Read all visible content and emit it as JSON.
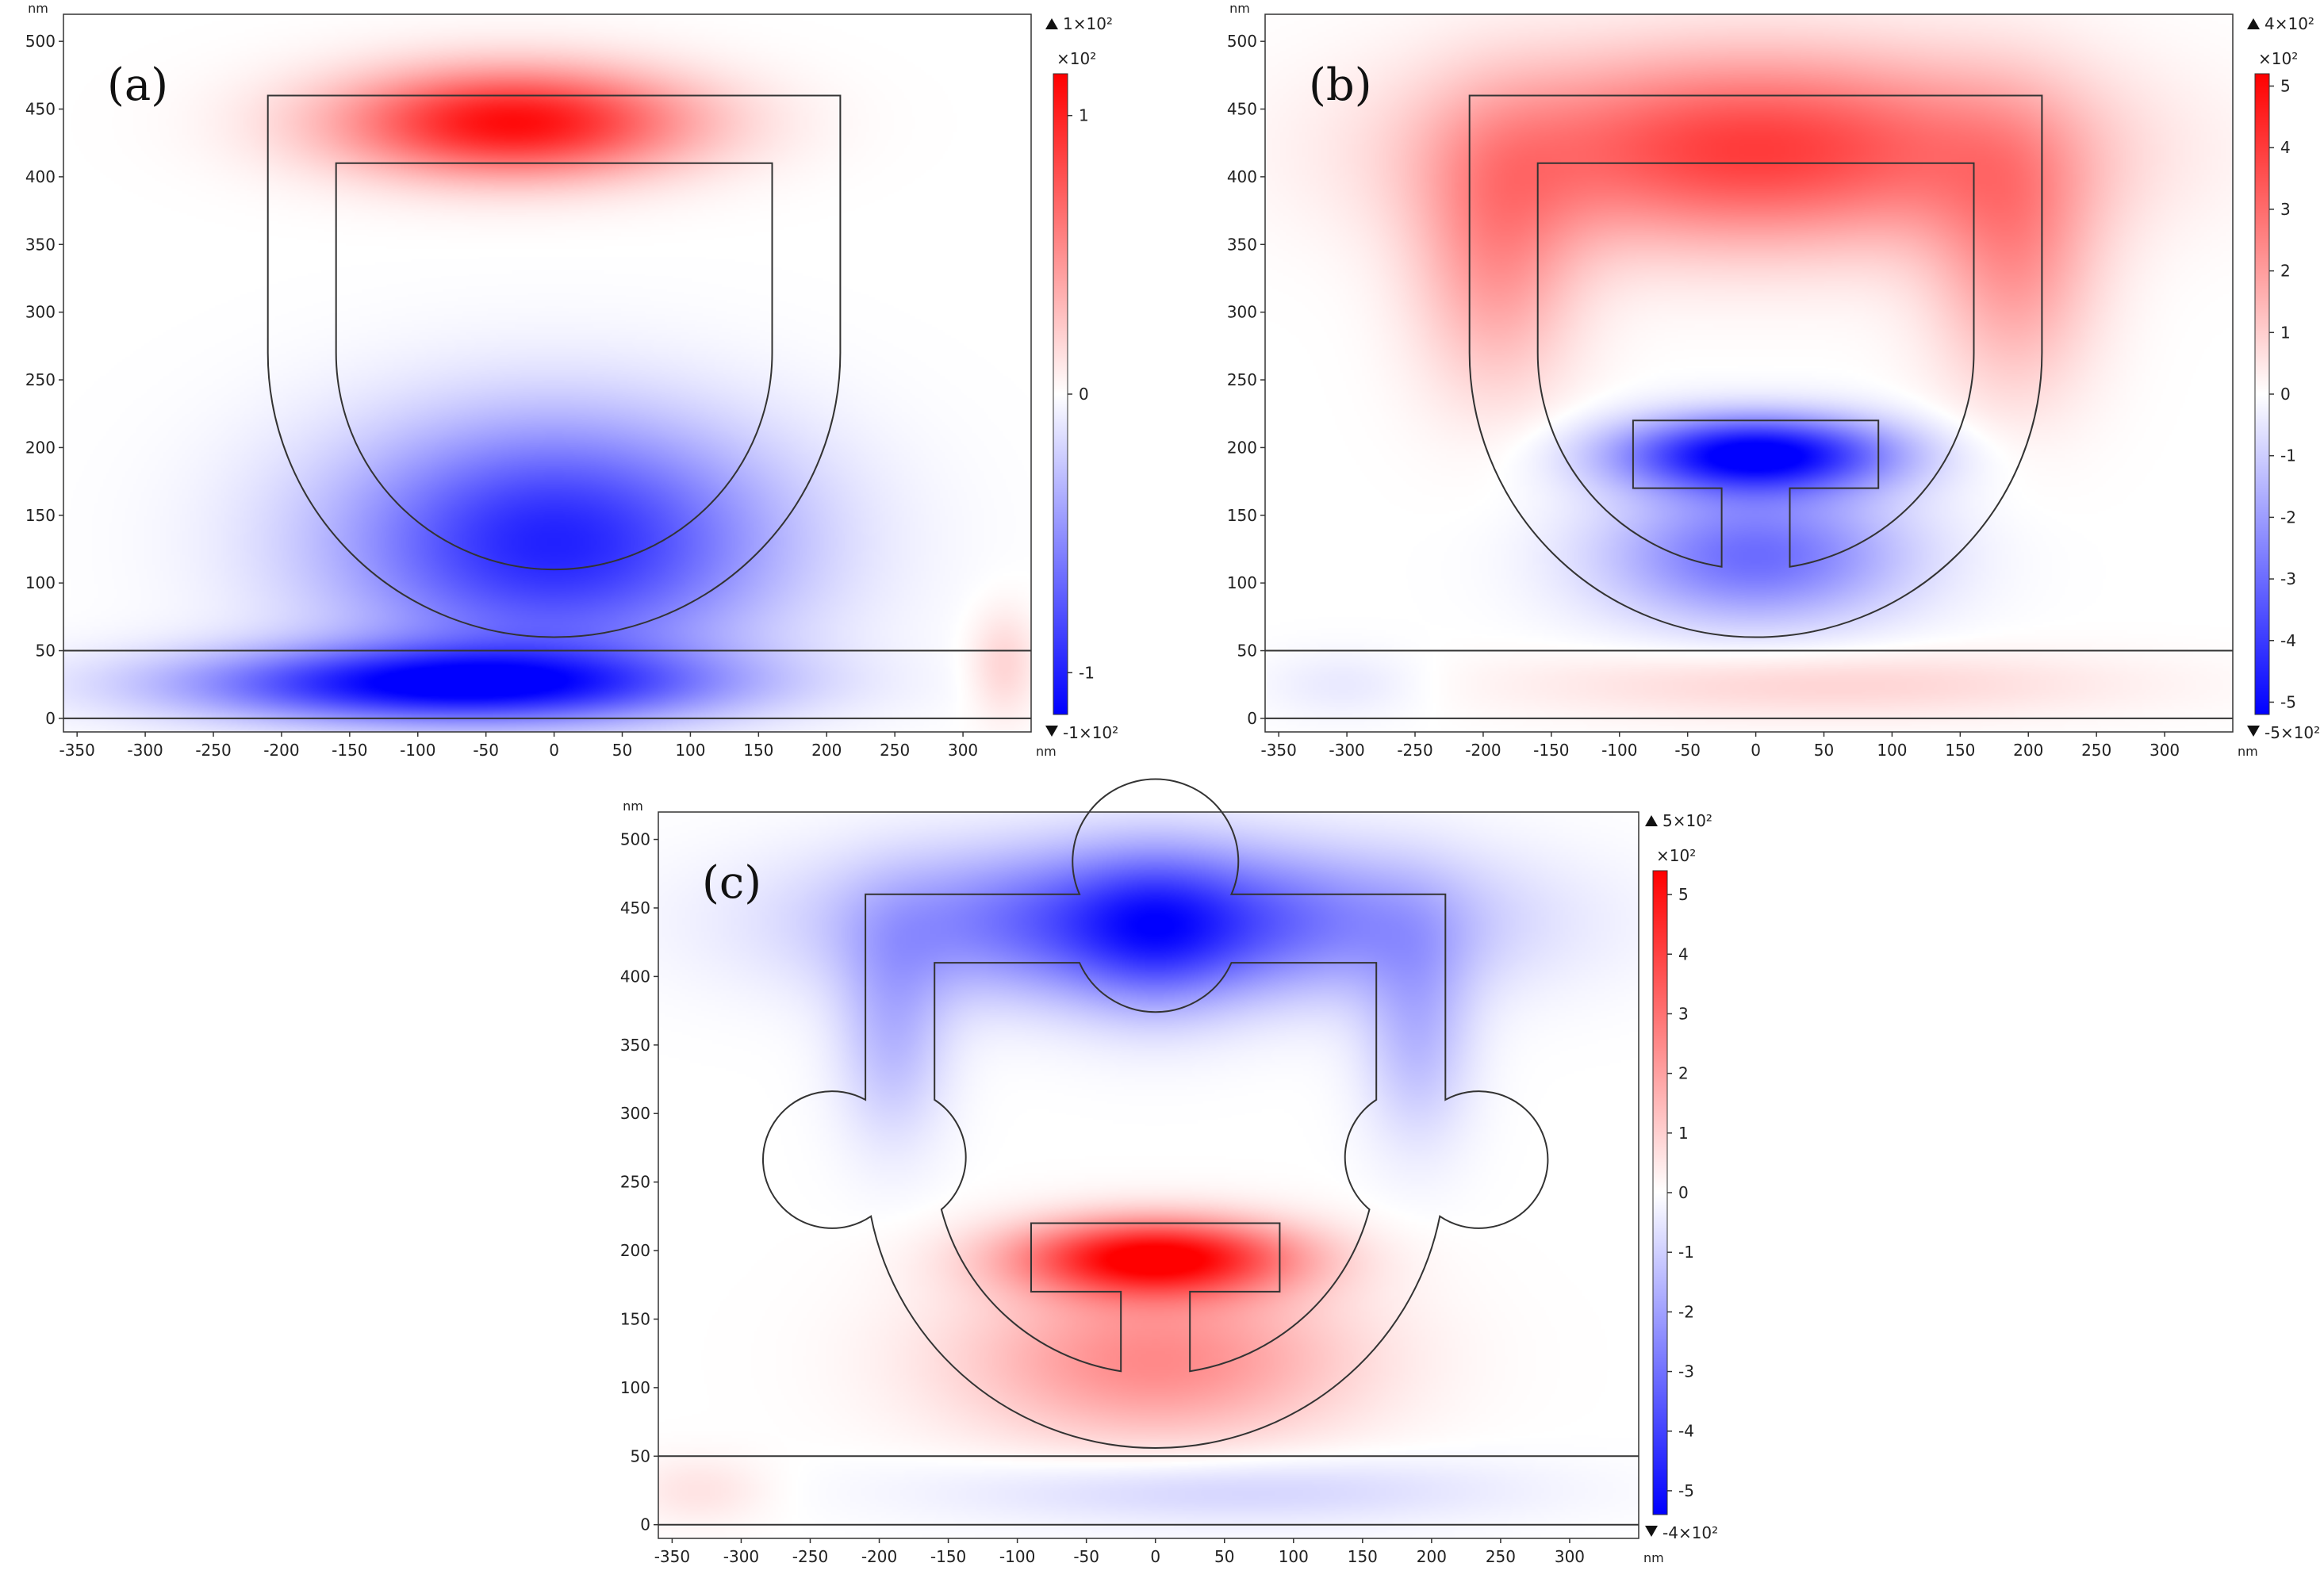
{
  "chart_data": [
    {
      "type": "heatmap",
      "label": "(a)",
      "x_unit": "nm",
      "y_unit": "nm",
      "xlim": [
        -360,
        350
      ],
      "ylim": [
        -10,
        520
      ],
      "x_ticks": [
        -350,
        -300,
        -250,
        -200,
        -150,
        -100,
        -50,
        0,
        50,
        100,
        150,
        200,
        250,
        300
      ],
      "y_ticks": [
        0,
        50,
        100,
        150,
        200,
        250,
        300,
        350,
        400,
        450,
        500
      ],
      "colorbar": {
        "max_label": "1×10²",
        "min_label": "-1×10²",
        "scale_label": "×10²",
        "ticks": [
          1,
          0,
          -1
        ],
        "range": [
          -1.15,
          1.15
        ]
      },
      "structure": "ring",
      "fields": [
        {
          "x": -30,
          "y": 440,
          "amp": 1.1,
          "sx": 130,
          "sy": 40
        },
        {
          "x": 0,
          "y": 130,
          "amp": -1.0,
          "sx": 160,
          "sy": 90
        },
        {
          "x": -80,
          "y": 25,
          "amp": -1.1,
          "sx": 190,
          "sy": 28
        },
        {
          "x": 330,
          "y": 40,
          "amp": 0.2,
          "sx": 25,
          "sy": 40
        }
      ]
    },
    {
      "type": "heatmap",
      "label": "(b)",
      "x_unit": "nm",
      "y_unit": "nm",
      "xlim": [
        -360,
        350
      ],
      "ylim": [
        -10,
        520
      ],
      "x_ticks": [
        -350,
        -300,
        -250,
        -200,
        -150,
        -100,
        -50,
        0,
        50,
        100,
        150,
        200,
        250,
        300
      ],
      "y_ticks": [
        0,
        50,
        100,
        150,
        200,
        250,
        300,
        350,
        400,
        450,
        500
      ],
      "colorbar": {
        "max_label": "4×10²",
        "min_label": "-5×10²",
        "scale_label": "×10²",
        "ticks": [
          5,
          4,
          3,
          2,
          1,
          0,
          -1,
          -2,
          -3,
          -4,
          -5
        ],
        "range": [
          -5.2,
          5.2
        ]
      },
      "structure": "ring-with-t",
      "fields": [
        {
          "x": 0,
          "y": 420,
          "amp": 4.0,
          "sx": 210,
          "sy": 70
        },
        {
          "x": -190,
          "y": 340,
          "amp": 2.0,
          "sx": 60,
          "sy": 100
        },
        {
          "x": 190,
          "y": 340,
          "amp": 2.0,
          "sx": 60,
          "sy": 100
        },
        {
          "x": 0,
          "y": 195,
          "amp": -5.5,
          "sx": 100,
          "sy": 28
        },
        {
          "x": 0,
          "y": 120,
          "amp": -3.0,
          "sx": 110,
          "sy": 50
        },
        {
          "x": 50,
          "y": 25,
          "amp": 0.9,
          "sx": 220,
          "sy": 25
        },
        {
          "x": -300,
          "y": 25,
          "amp": -0.5,
          "sx": 60,
          "sy": 25
        }
      ]
    },
    {
      "type": "heatmap",
      "label": "(c)",
      "x_unit": "nm",
      "y_unit": "nm",
      "xlim": [
        -360,
        350
      ],
      "ylim": [
        -10,
        520
      ],
      "x_ticks": [
        -350,
        -300,
        -250,
        -200,
        -150,
        -100,
        -50,
        0,
        50,
        100,
        150,
        200,
        250,
        300
      ],
      "y_ticks": [
        0,
        50,
        100,
        150,
        200,
        250,
        300,
        350,
        400,
        450,
        500
      ],
      "colorbar": {
        "max_label": "5×10²",
        "min_label": "-4×10²",
        "scale_label": "×10²",
        "ticks": [
          5,
          4,
          3,
          2,
          1,
          0,
          -1,
          -2,
          -3,
          -4,
          -5
        ],
        "range": [
          -5.4,
          5.4
        ]
      },
      "structure": "ring-with-t-and-circles",
      "fields": [
        {
          "x": 0,
          "y": 440,
          "amp": -4.0,
          "sx": 210,
          "sy": 55
        },
        {
          "x": 0,
          "y": 430,
          "amp": -1.5,
          "sx": 60,
          "sy": 60
        },
        {
          "x": -190,
          "y": 360,
          "amp": -1.5,
          "sx": 40,
          "sy": 80
        },
        {
          "x": 190,
          "y": 360,
          "amp": -1.5,
          "sx": 40,
          "sy": 80
        },
        {
          "x": 0,
          "y": 195,
          "amp": 5.5,
          "sx": 100,
          "sy": 28
        },
        {
          "x": 0,
          "y": 120,
          "amp": 2.5,
          "sx": 140,
          "sy": 60
        },
        {
          "x": 50,
          "y": 25,
          "amp": -1.0,
          "sx": 200,
          "sy": 25
        },
        {
          "x": -330,
          "y": 25,
          "amp": 0.6,
          "sx": 50,
          "sy": 25
        }
      ]
    }
  ]
}
